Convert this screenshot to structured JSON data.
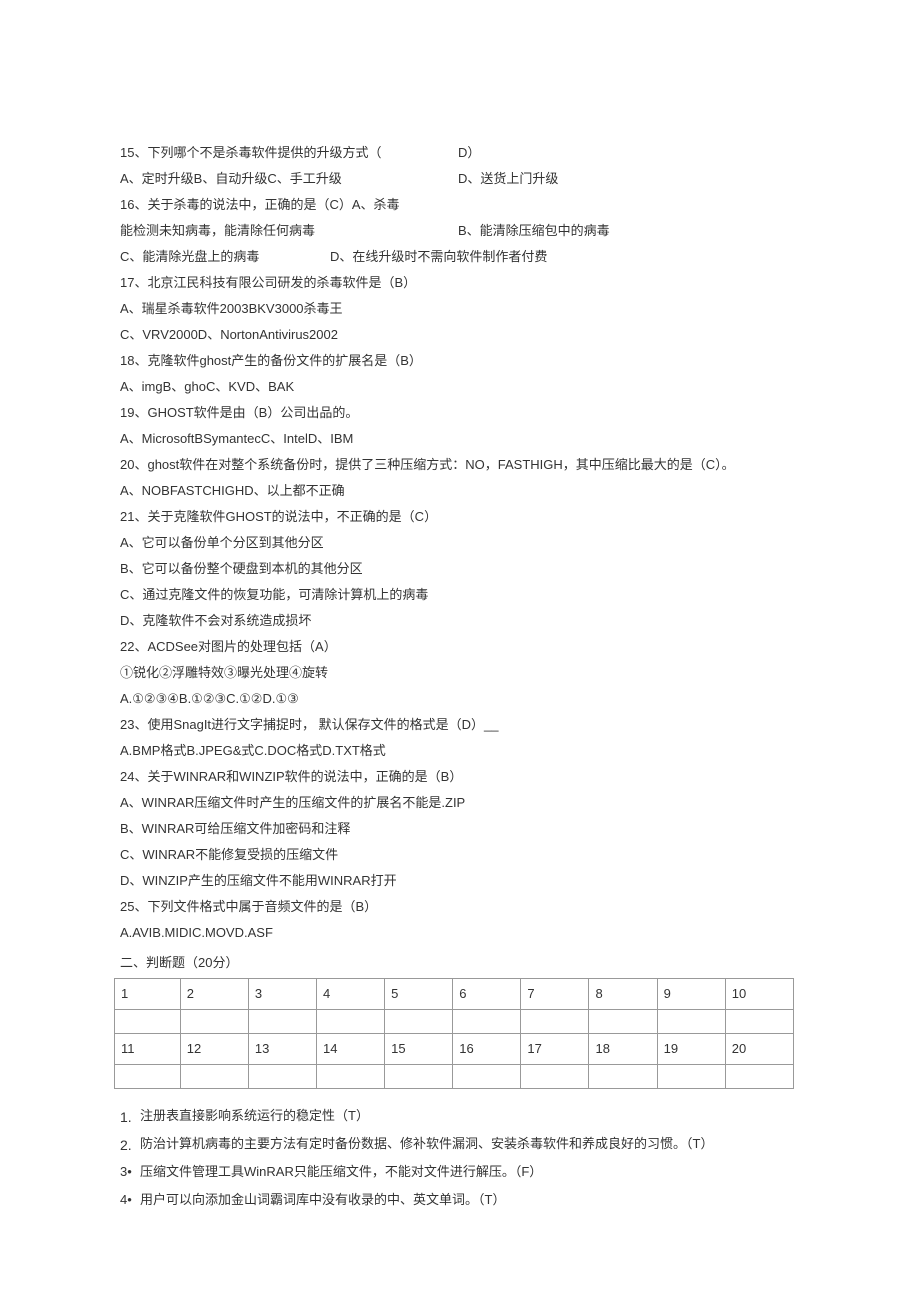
{
  "q15": {
    "stem": "15、下列哪个不是杀毒软件提供的升级方式（",
    "answer": "D）",
    "opts_abc": "A、定时升级B、自动升级C、手工升级",
    "opt_d": "D、送货上门升级"
  },
  "q16": {
    "line1": "16、关于杀毒的说法中，正确的是（C）A、杀毒",
    "line2a": "能检测未知病毒，能清除任何病毒",
    "line2b": "B、能清除压缩包中的病毒",
    "line3a": " C、能清除光盘上的病毒",
    "line3b": "D、在线升级时不需向软件制作者付费"
  },
  "q17": {
    "stem": "17、北京江民科技有限公司研发的杀毒软件是（B）",
    "opt_a": "A、瑞星杀毒软件2003BKV3000杀毒王",
    "opt_c": "C、VRV2000D、NortonAntivirus2002"
  },
  "q18": {
    "stem": "18、克隆软件ghost产生的备份文件的扩展名是（B）",
    "opts": "A、imgB、ghoC、KVD、BAK"
  },
  "q19": {
    "stem": "19、GHOST软件是由（B）公司出品的。",
    "opts": "A、MicrosoftBSymantecC、IntelD、IBM"
  },
  "q20": {
    "stem": "20、ghost软件在对整个系统备份时，提供了三种压缩方式：NO，FASTHIGH，其中压缩比最大的是（C）。",
    "opts": "A、NOBFASTCHIGHD、以上都不正确"
  },
  "q21": {
    "stem": "21、关于克隆软件GHOST的说法中，不正确的是（C）",
    "a": "A、它可以备份单个分区到其他分区",
    "b": "B、它可以备份整个硬盘到本机的其他分区",
    "c": "C、通过克隆文件的恢复功能，可清除计算机上的病毒",
    "d": "D、克隆软件不会对系统造成损坏"
  },
  "q22": {
    "stem": "22、ACDSee对图片的处理包括（A）",
    "sub": "①锐化②浮雕特效③曝光处理④旋转",
    "opts": "A.①②③④B.①②③C.①②D.①③"
  },
  "q23": {
    "stem": "23、使用SnagIt进行文字捕捉时， 默认保存文件的格式是（D）__",
    "opts": "A.BMP格式B.JPEG&式C.DOC格式D.TXT格式"
  },
  "q24": {
    "stem": "24、关于WINRAR和WINZIP软件的说法中，正确的是（B）",
    "a": "A、WINRAR压缩文件时产生的压缩文件的扩展名不能是.ZIP",
    "b": "B、WINRAR可给压缩文件加密码和注释",
    "c": "C、WINRAR不能修复受损的压缩文件",
    "d": "D、WINZIP产生的压缩文件不能用WINRAR打开"
  },
  "q25": {
    "stem": "25、下列文件格式中属于音频文件的是（B）",
    "opts": " A.AVIB.MIDIC.MOVD.ASF"
  },
  "section2": " 二、判断题（20分）",
  "grid": {
    "row1": [
      "1",
      "2",
      "3",
      "4",
      "5",
      "6",
      "7",
      "8",
      "9",
      "10"
    ],
    "row2": [
      "",
      "",
      "",
      "",
      "",
      "",
      "",
      "",
      "",
      ""
    ],
    "row3": [
      "11",
      "12",
      "13",
      "14",
      "15",
      "16",
      "17",
      "18",
      "19",
      "20"
    ],
    "row4": [
      "",
      "",
      "",
      "",
      "",
      "",
      "",
      "",
      "",
      ""
    ]
  },
  "tf": {
    "i1": {
      "num": "1.",
      "text": "注册表直接影响系统运行的稳定性（T）"
    },
    "i2": {
      "num": "2.",
      "text": "防治计算机病毒的主要方法有定时备份数据、修补软件漏洞、安装杀毒软件和养成良好的习惯。（T）"
    },
    "i3": {
      "num": "3•",
      "text": "压缩文件管理工具WinRAR只能压缩文件，不能对文件进行解压。（F）"
    },
    "i4": {
      "num": "4•",
      "text": "用户可以向添加金山词霸词库中没有收录的中、英文单词。（T）"
    }
  }
}
